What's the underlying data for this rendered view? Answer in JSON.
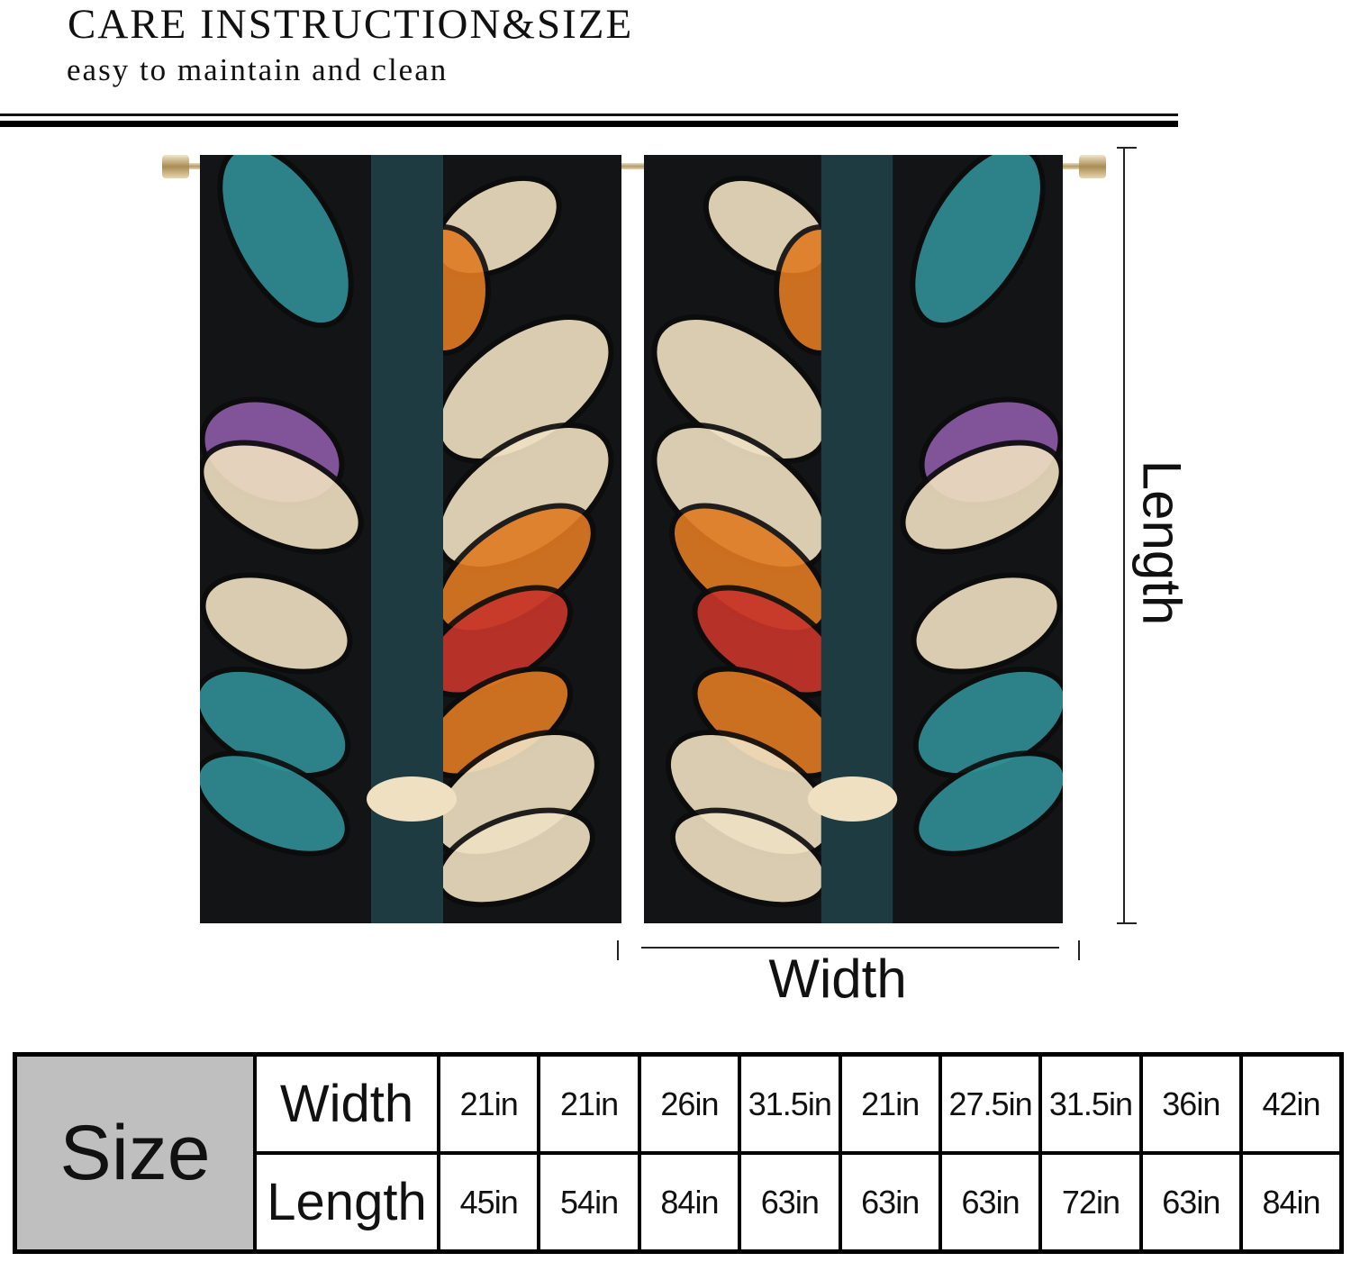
{
  "header": {
    "title": "CARE INSTRUCTION&SIZE",
    "subtitle": "easy to maintain and clean"
  },
  "diagram": {
    "length_label": "Length",
    "width_label": "Width",
    "colors": {
      "teal": "#2f8f95",
      "cream": "#efe0c2",
      "orange": "#e07a22",
      "red": "#c8362c",
      "purple": "#8e5aa8",
      "dark": "#121416"
    }
  },
  "size_table": {
    "label": "Size",
    "width_header": "Width",
    "length_header": "Length",
    "widths": [
      "21in",
      "21in",
      "26in",
      "31.5in",
      "21in",
      "27.5in",
      "31.5in",
      "36in",
      "42in"
    ],
    "lengths": [
      "45in",
      "54in",
      "84in",
      "63in",
      "63in",
      "63in",
      "72in",
      "63in",
      "84in"
    ]
  }
}
